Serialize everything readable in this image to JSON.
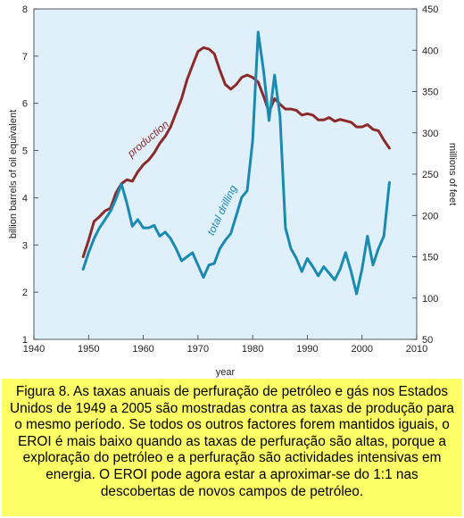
{
  "chart_data": {
    "type": "line",
    "xlabel": "year",
    "ylabel_left": "billion barrels of oil equivalent",
    "ylabel_right": "millions of feet",
    "x_range": [
      1940,
      2010
    ],
    "x_ticks": [
      1940,
      1950,
      1960,
      1970,
      1980,
      1990,
      2000,
      2010
    ],
    "y_left_range": [
      1,
      8
    ],
    "y_left_ticks": [
      1,
      2,
      3,
      4,
      5,
      6,
      7,
      8
    ],
    "y_right_range": [
      50,
      450
    ],
    "y_right_ticks": [
      50,
      100,
      150,
      200,
      250,
      300,
      350,
      400,
      450
    ],
    "grid": false,
    "plot_background": "#e0f0fa",
    "series": [
      {
        "name": "production",
        "axis": "left",
        "color": "#8b2a2a",
        "points": [
          [
            1949,
            2.75
          ],
          [
            1950,
            3.1
          ],
          [
            1951,
            3.5
          ],
          [
            1952,
            3.6
          ],
          [
            1953,
            3.72
          ],
          [
            1954,
            3.78
          ],
          [
            1955,
            4.1
          ],
          [
            1956,
            4.3
          ],
          [
            1957,
            4.38
          ],
          [
            1958,
            4.35
          ],
          [
            1959,
            4.55
          ],
          [
            1960,
            4.7
          ],
          [
            1961,
            4.8
          ],
          [
            1962,
            4.95
          ],
          [
            1963,
            5.15
          ],
          [
            1964,
            5.3
          ],
          [
            1965,
            5.5
          ],
          [
            1966,
            5.8
          ],
          [
            1967,
            6.1
          ],
          [
            1968,
            6.5
          ],
          [
            1969,
            6.8
          ],
          [
            1970,
            7.1
          ],
          [
            1971,
            7.18
          ],
          [
            1972,
            7.15
          ],
          [
            1973,
            7.05
          ],
          [
            1974,
            6.7
          ],
          [
            1975,
            6.4
          ],
          [
            1976,
            6.3
          ],
          [
            1977,
            6.4
          ],
          [
            1978,
            6.55
          ],
          [
            1979,
            6.6
          ],
          [
            1980,
            6.55
          ],
          [
            1981,
            6.45
          ],
          [
            1982,
            6.15
          ],
          [
            1983,
            5.82
          ],
          [
            1984,
            6.1
          ],
          [
            1985,
            5.98
          ],
          [
            1986,
            5.88
          ],
          [
            1987,
            5.88
          ],
          [
            1988,
            5.85
          ],
          [
            1989,
            5.75
          ],
          [
            1990,
            5.78
          ],
          [
            1991,
            5.75
          ],
          [
            1992,
            5.65
          ],
          [
            1993,
            5.65
          ],
          [
            1994,
            5.7
          ],
          [
            1995,
            5.62
          ],
          [
            1996,
            5.66
          ],
          [
            1997,
            5.63
          ],
          [
            1998,
            5.6
          ],
          [
            1999,
            5.5
          ],
          [
            2000,
            5.5
          ],
          [
            2001,
            5.55
          ],
          [
            2002,
            5.45
          ],
          [
            2003,
            5.42
          ],
          [
            2004,
            5.22
          ],
          [
            2005,
            5.05
          ]
        ]
      },
      {
        "name": "total drilling",
        "axis": "right",
        "color": "#1a8ab0",
        "points": [
          [
            1949,
            135
          ],
          [
            1950,
            155
          ],
          [
            1951,
            172
          ],
          [
            1952,
            185
          ],
          [
            1953,
            195
          ],
          [
            1954,
            205
          ],
          [
            1955,
            220
          ],
          [
            1956,
            238
          ],
          [
            1957,
            215
          ],
          [
            1958,
            187
          ],
          [
            1959,
            195
          ],
          [
            1960,
            185
          ],
          [
            1961,
            185
          ],
          [
            1962,
            188
          ],
          [
            1963,
            175
          ],
          [
            1964,
            180
          ],
          [
            1965,
            172
          ],
          [
            1966,
            160
          ],
          [
            1967,
            145
          ],
          [
            1968,
            150
          ],
          [
            1969,
            155
          ],
          [
            1970,
            140
          ],
          [
            1971,
            125
          ],
          [
            1972,
            140
          ],
          [
            1973,
            142
          ],
          [
            1974,
            160
          ],
          [
            1975,
            170
          ],
          [
            1976,
            178
          ],
          [
            1977,
            200
          ],
          [
            1978,
            222
          ],
          [
            1979,
            230
          ],
          [
            1980,
            290
          ],
          [
            1981,
            422
          ],
          [
            1982,
            375
          ],
          [
            1983,
            315
          ],
          [
            1984,
            370
          ],
          [
            1985,
            320
          ],
          [
            1986,
            185
          ],
          [
            1987,
            160
          ],
          [
            1988,
            148
          ],
          [
            1989,
            132
          ],
          [
            1990,
            148
          ],
          [
            1991,
            138
          ],
          [
            1992,
            127
          ],
          [
            1993,
            138
          ],
          [
            1994,
            130
          ],
          [
            1995,
            122
          ],
          [
            1996,
            135
          ],
          [
            1997,
            155
          ],
          [
            1998,
            132
          ],
          [
            1999,
            105
          ],
          [
            2000,
            135
          ],
          [
            2001,
            175
          ],
          [
            2002,
            140
          ],
          [
            2003,
            160
          ],
          [
            2004,
            175
          ],
          [
            2005,
            240
          ]
        ]
      }
    ]
  },
  "series_labels": {
    "production": "production",
    "total_drilling": "total drilling"
  },
  "caption": {
    "text": "Figura 8. As taxas anuais de perfuração de petróleo e gás nos Estados Unidos de 1949 a 2005 são mostradas contra as taxas de produção para o mesmo período. Se todos os outros factores forem mantidos iguais, o EROI é mais baixo quando as taxas de perfuração são altas, porque a exploração do petróleo e a perfuração são actividades intensivas em energia. O EROI pode agora estar a aproximar-se do 1:1 nas descobertas de novos campos de petróleo.",
    "background": "#ffff66"
  }
}
